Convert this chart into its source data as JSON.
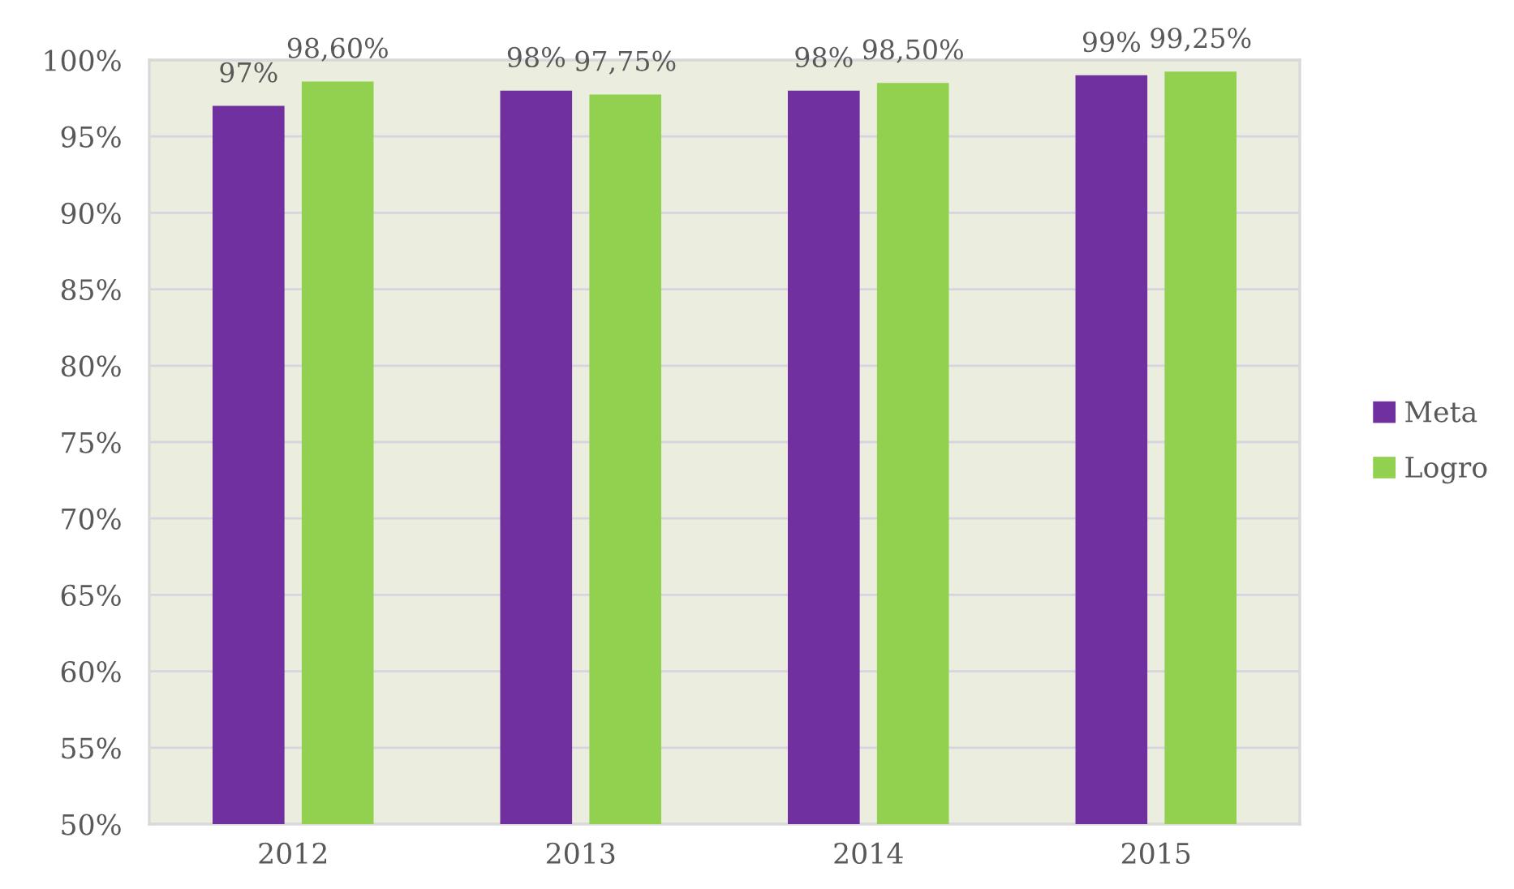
{
  "chart_data": {
    "type": "bar",
    "categories": [
      "2012",
      "2013",
      "2014",
      "2015"
    ],
    "series": [
      {
        "name": "Meta",
        "color": "#7030a0",
        "values": [
          97,
          98,
          98,
          99
        ],
        "value_labels": [
          "97%",
          "98%",
          "98%",
          "99%"
        ]
      },
      {
        "name": "Logro",
        "color": "#92d050",
        "values": [
          98.6,
          97.75,
          98.5,
          99.25
        ],
        "value_labels": [
          "98,60%",
          "97,75%",
          "98,50%",
          "99,25%"
        ]
      }
    ],
    "ylim": [
      50,
      100
    ],
    "yticks": [
      {
        "value": 50,
        "label": "50%"
      },
      {
        "value": 55,
        "label": "55%"
      },
      {
        "value": 60,
        "label": "60%"
      },
      {
        "value": 65,
        "label": "65%"
      },
      {
        "value": 70,
        "label": "70%"
      },
      {
        "value": 75,
        "label": "75%"
      },
      {
        "value": 80,
        "label": "80%"
      },
      {
        "value": 85,
        "label": "85%"
      },
      {
        "value": 90,
        "label": "90%"
      },
      {
        "value": 95,
        "label": "95%"
      },
      {
        "value": 100,
        "label": "100%"
      }
    ],
    "grid": "y",
    "legend": "right"
  }
}
